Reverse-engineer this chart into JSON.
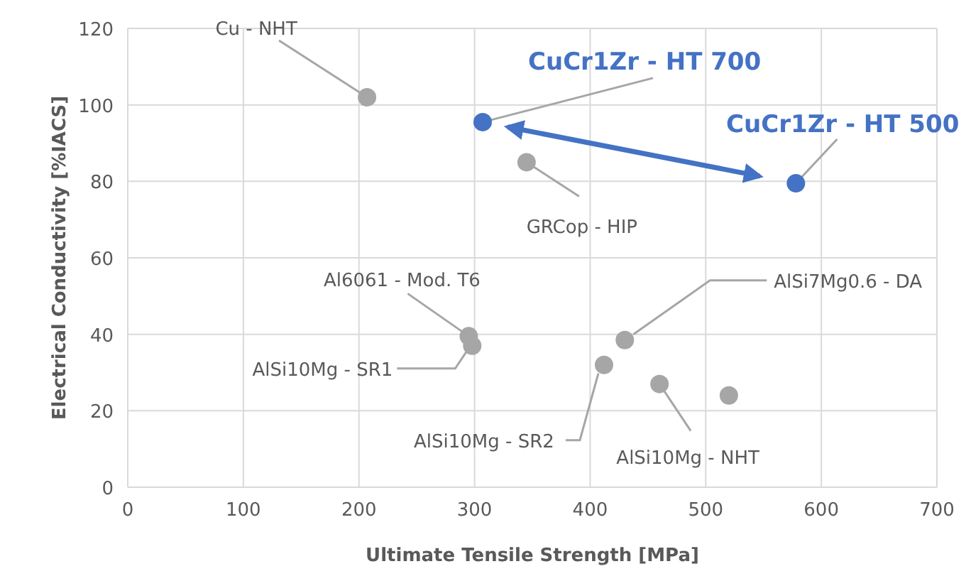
{
  "chart_data": {
    "type": "scatter",
    "xlabel": "Ultimate Tensile Strength [MPa]",
    "ylabel": "Electrical Conductivity [%IACS]",
    "xlim": [
      0,
      700
    ],
    "xticks": [
      0,
      100,
      200,
      300,
      400,
      500,
      600,
      700
    ],
    "ylim": [
      0,
      120
    ],
    "yticks": [
      0,
      20,
      40,
      60,
      80,
      100,
      120
    ],
    "grid": true,
    "marker": "circle",
    "series": [
      {
        "color": "#a6a6a6",
        "x": [
          207,
          345,
          295,
          298,
          430,
          412,
          460,
          520
        ],
        "values": [
          102,
          85,
          39.5,
          37,
          38.5,
          32,
          27,
          24
        ]
      },
      {
        "color": "#4472c4",
        "x": [
          307,
          578
        ],
        "values": [
          95.5,
          79.5
        ]
      }
    ],
    "annotations": [
      {
        "text": "Cu - NHT",
        "x": 207,
        "y": 102
      },
      {
        "text": "CuCr1Zr - HT 700",
        "x": 307,
        "y": 95.5
      },
      {
        "text": "CuCr1Zr - HT 500",
        "x": 578,
        "y": 79.5
      },
      {
        "text": "GRCop - HIP",
        "x": 345,
        "y": 85
      },
      {
        "text": "Al6061 - Mod. T6",
        "x": 295,
        "y": 39.5
      },
      {
        "text": "AlSi10Mg - SR1",
        "x": 298,
        "y": 37
      },
      {
        "text": "AlSi7Mg0.6 - DA",
        "x": 430,
        "y": 38.5
      },
      {
        "text": "AlSi10Mg - SR2",
        "x": 412,
        "y": 32
      },
      {
        "text": "AlSi10Mg - NHT",
        "x": 460,
        "y": 27
      }
    ]
  }
}
